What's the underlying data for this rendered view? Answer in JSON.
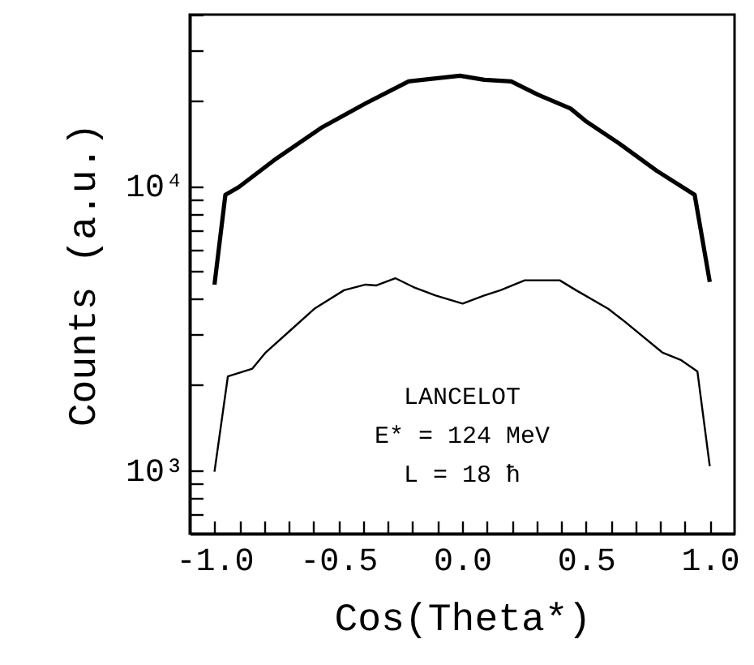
{
  "chart_data": {
    "type": "line",
    "xlabel": "Cos(Theta*)",
    "ylabel": "Counts (a.u.)",
    "log": "y",
    "grid": false,
    "xlim": [
      -1.1,
      1.1
    ],
    "ylim": [
      600,
      40000
    ],
    "xticks": [
      {
        "value": -1,
        "label": "-1.0"
      },
      {
        "value": -0.9,
        "label": null
      },
      {
        "value": -0.8,
        "label": null
      },
      {
        "value": -0.7,
        "label": null
      },
      {
        "value": -0.6,
        "label": null
      },
      {
        "value": -0.5,
        "label": "-0.5"
      },
      {
        "value": -0.4,
        "label": null
      },
      {
        "value": -0.3,
        "label": null
      },
      {
        "value": -0.2,
        "label": null
      },
      {
        "value": -0.1,
        "label": null
      },
      {
        "value": 0,
        "label": "0.0"
      },
      {
        "value": 0.1,
        "label": null
      },
      {
        "value": 0.2,
        "label": null
      },
      {
        "value": 0.3,
        "label": null
      },
      {
        "value": 0.4,
        "label": null
      },
      {
        "value": 0.5,
        "label": "0.5"
      },
      {
        "value": 0.6,
        "label": null
      },
      {
        "value": 0.7,
        "label": null
      },
      {
        "value": 0.8,
        "label": null
      },
      {
        "value": 0.9,
        "label": null
      },
      {
        "value": 1,
        "label": "1.0"
      }
    ],
    "yticks": [
      {
        "value": 700,
        "label": null
      },
      {
        "value": 800,
        "label": null
      },
      {
        "value": 900,
        "label": null
      },
      {
        "value": 1000,
        "label": "10³"
      },
      {
        "value": 2000,
        "label": null
      },
      {
        "value": 3000,
        "label": null
      },
      {
        "value": 4000,
        "label": null
      },
      {
        "value": 5000,
        "label": null
      },
      {
        "value": 6000,
        "label": null
      },
      {
        "value": 7000,
        "label": null
      },
      {
        "value": 8000,
        "label": null
      },
      {
        "value": 9000,
        "label": null
      },
      {
        "value": 10000,
        "label": "10⁴"
      },
      {
        "value": 20000,
        "label": null
      },
      {
        "value": 30000,
        "label": null
      },
      {
        "value": 40000,
        "label": null
      }
    ],
    "series": [
      {
        "color": "#000000",
        "x": [
          -1.0,
          -0.956,
          -0.902,
          -0.76,
          -0.564,
          -0.39,
          -0.216,
          -0.009,
          0.089,
          0.198,
          0.307,
          0.438,
          0.503,
          0.634,
          0.786,
          0.939,
          1.0
        ],
        "values": [
          4500,
          9300,
          9900,
          12300,
          16100,
          19500,
          23300,
          24400,
          23600,
          23300,
          20900,
          18700,
          16800,
          14100,
          11300,
          9300,
          4600
        ]
      },
      {
        "color": "#000000",
        "x": [
          -1.0,
          -0.946,
          -0.847,
          -0.793,
          -0.695,
          -0.597,
          -0.477,
          -0.39,
          -0.346,
          -0.27,
          -0.194,
          -0.107,
          0.002,
          0.089,
          0.155,
          0.253,
          0.394,
          0.46,
          0.59,
          0.656,
          0.808,
          0.885,
          0.95,
          1.0
        ],
        "values": [
          990,
          2140,
          2280,
          2600,
          3100,
          3700,
          4300,
          4500,
          4470,
          4740,
          4400,
          4120,
          3860,
          4120,
          4300,
          4660,
          4660,
          4300,
          3700,
          3340,
          2600,
          2440,
          2230,
          1035
        ]
      }
    ],
    "annotations": [
      "LANCELOT",
      "E* = 124 MeV",
      "L = 18 ħ"
    ]
  }
}
